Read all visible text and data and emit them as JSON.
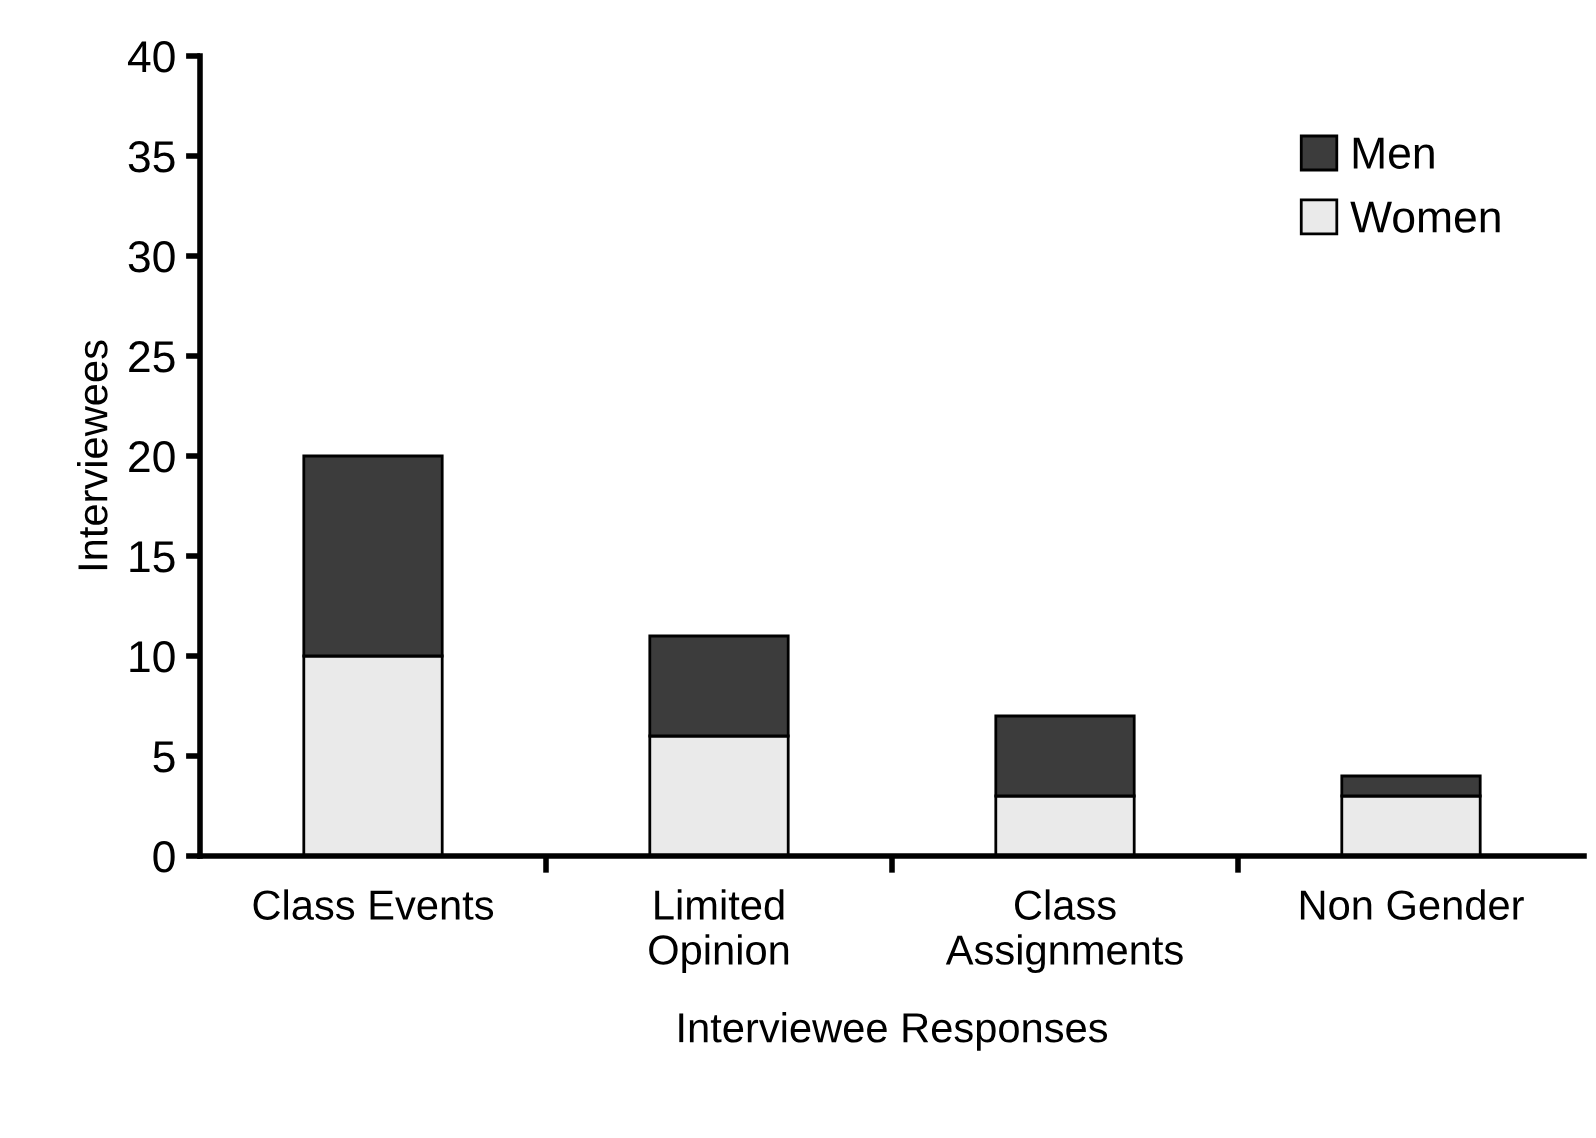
{
  "chart_data": {
    "type": "bar",
    "stacked": true,
    "xlabel": "Interviewee Responses",
    "ylabel": "Interviewees",
    "categories": [
      "Class Events",
      "Limited\nOpinion",
      "Class\nAssignments",
      "Non Gender"
    ],
    "series": [
      {
        "name": "Women",
        "color": "#eaeaea",
        "values": [
          10,
          6,
          3,
          3
        ]
      },
      {
        "name": "Men",
        "color": "#3c3c3c",
        "values": [
          10,
          5,
          4,
          1
        ]
      }
    ],
    "ylim": [
      0,
      40
    ],
    "yticks": [
      0,
      5,
      10,
      15,
      20,
      25,
      30,
      35,
      40
    ],
    "grid": false,
    "legend": "top right"
  }
}
